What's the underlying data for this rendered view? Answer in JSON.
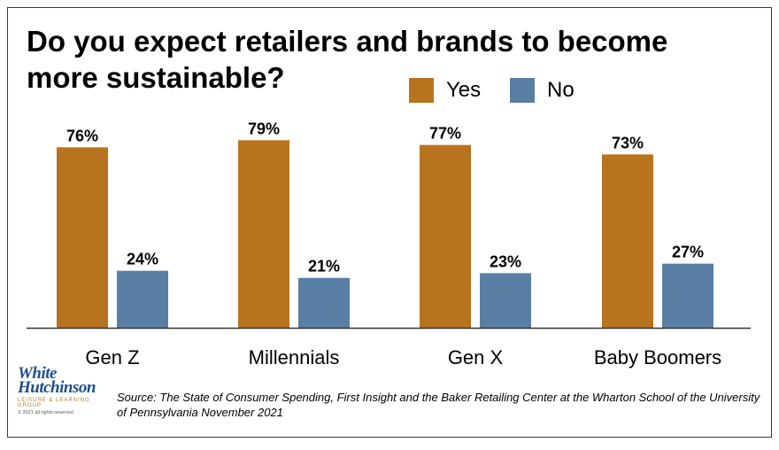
{
  "title": "Do you expect retailers and brands to become more sustainable?",
  "legend": {
    "yes_label": "Yes",
    "no_label": "No"
  },
  "colors": {
    "yes": "#b8731f",
    "no": "#5a7fa4",
    "axis": "#333333"
  },
  "chart_data": {
    "type": "bar",
    "title": "Do you expect retailers and brands to become more sustainable?",
    "categories": [
      "Gen Z",
      "Millennials",
      "Gen X",
      "Baby Boomers"
    ],
    "series": [
      {
        "name": "Yes",
        "values": [
          76,
          79,
          77,
          73
        ]
      },
      {
        "name": "No",
        "values": [
          24,
          21,
          23,
          27
        ]
      }
    ],
    "value_suffix": "%",
    "ylim": [
      0,
      100
    ],
    "grid": false,
    "legend_position": "top-right"
  },
  "logo": {
    "main_line1": "White",
    "main_line2": "Hutchinson",
    "tagline": "LEISURE & LEARNING GROUP",
    "copyright": "© 2021 all rights reserved"
  },
  "source": {
    "prefix": "Source: The State of Consumer Spending",
    "suffix": ", First Insight and the Baker Retailing Center at the Wharton School of the University of Pennsylvania November 2021"
  }
}
